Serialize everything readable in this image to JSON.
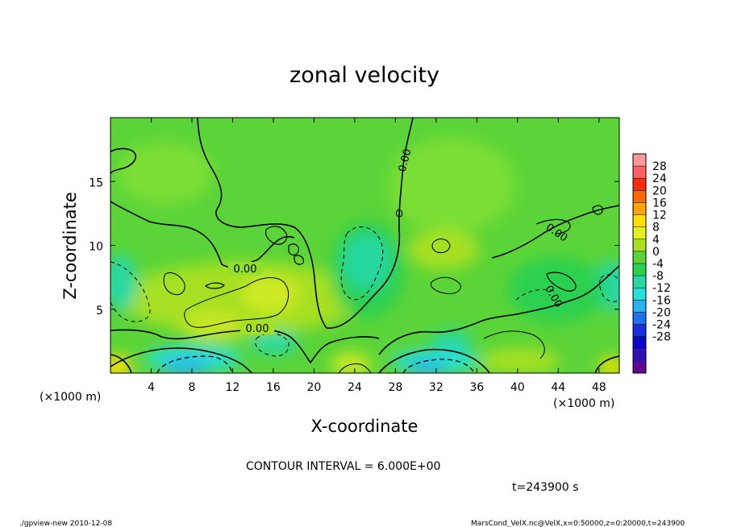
{
  "chart_data": {
    "type": "heatmap",
    "title": "zonal velocity",
    "xlabel": "X-coordinate",
    "ylabel": "Z-coordinate",
    "x_unit": "(×1000 m)",
    "x_unit_right": "(×1000 m)",
    "xlim": [
      0,
      50
    ],
    "ylim": [
      0,
      20
    ],
    "x_ticks": [
      4,
      8,
      12,
      16,
      20,
      24,
      28,
      32,
      36,
      40,
      44,
      48
    ],
    "y_ticks": [
      5,
      10,
      15
    ],
    "contour_interval_text": "CONTOUR INTERVAL = 6.000E+00",
    "time_text": "t=243900 s",
    "contour_labels": [
      "0.00",
      "0.00",
      "0.00",
      "0.00",
      "0.00"
    ],
    "colorbar": {
      "labels": [
        28,
        24,
        20,
        16,
        12,
        8,
        4,
        0,
        -4,
        -8,
        -12,
        -16,
        -20,
        -24,
        -28
      ],
      "colors": [
        "#ff9898",
        "#ff6060",
        "#ff2a10",
        "#ff6a00",
        "#ffa400",
        "#ffe000",
        "#e4f020",
        "#a6e020",
        "#5ad438",
        "#2cd050",
        "#28d8a0",
        "#28e0d8",
        "#28b4f0",
        "#2070f0",
        "#1830e0",
        "#0808c8",
        "#3010b0",
        "#5c0890"
      ]
    },
    "grid": false,
    "legend": "right"
  },
  "footer": {
    "left": "./gpview-new  2010-12-08",
    "right": "MarsCond_VelX.nc@VelX,x=0:50000,z=0:20000,t=243900"
  }
}
